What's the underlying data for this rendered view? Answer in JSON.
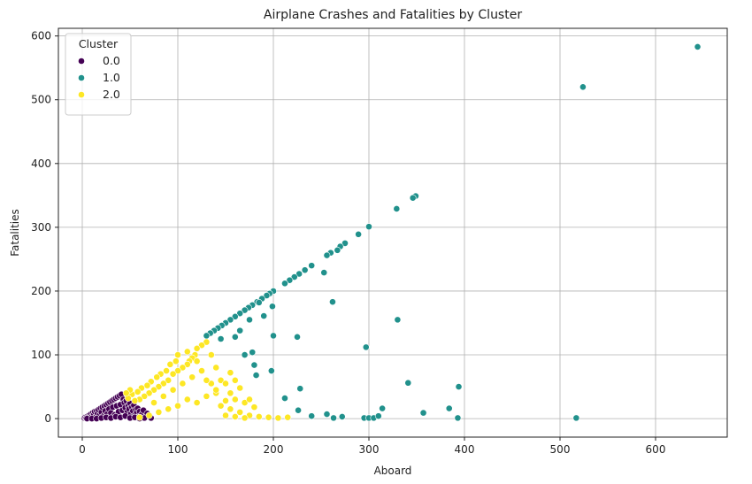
{
  "chart_data": {
    "type": "scatter",
    "title": "Airplane Crashes and Fatalities by Cluster",
    "xlabel": "Aboard",
    "ylabel": "Fatalities",
    "xlim": [
      -25,
      675
    ],
    "ylim": [
      -29,
      612
    ],
    "xticks": [
      0,
      100,
      200,
      300,
      400,
      500,
      600
    ],
    "yticks": [
      0,
      100,
      200,
      300,
      400,
      500,
      600
    ],
    "grid": true,
    "legend": {
      "title": "Cluster",
      "placement": "top-left"
    },
    "series": [
      {
        "name": "0.0",
        "color": "#440154",
        "points": [
          [
            2,
            1
          ],
          [
            3,
            2
          ],
          [
            4,
            1
          ],
          [
            5,
            3
          ],
          [
            6,
            2
          ],
          [
            7,
            5
          ],
          [
            8,
            4
          ],
          [
            9,
            7
          ],
          [
            10,
            3
          ],
          [
            11,
            9
          ],
          [
            12,
            6
          ],
          [
            13,
            11
          ],
          [
            14,
            2
          ],
          [
            15,
            12
          ],
          [
            16,
            8
          ],
          [
            17,
            14
          ],
          [
            18,
            5
          ],
          [
            19,
            16
          ],
          [
            20,
            10
          ],
          [
            21,
            18
          ],
          [
            22,
            4
          ],
          [
            23,
            20
          ],
          [
            24,
            12
          ],
          [
            25,
            22
          ],
          [
            26,
            7
          ],
          [
            27,
            24
          ],
          [
            28,
            15
          ],
          [
            29,
            26
          ],
          [
            30,
            9
          ],
          [
            31,
            28
          ],
          [
            32,
            18
          ],
          [
            33,
            30
          ],
          [
            34,
            6
          ],
          [
            35,
            32
          ],
          [
            36,
            20
          ],
          [
            37,
            34
          ],
          [
            38,
            11
          ],
          [
            39,
            36
          ],
          [
            40,
            22
          ],
          [
            41,
            38
          ],
          [
            42,
            13
          ],
          [
            43,
            30
          ],
          [
            44,
            25
          ],
          [
            45,
            17
          ],
          [
            46,
            28
          ],
          [
            47,
            10
          ],
          [
            48,
            20
          ],
          [
            49,
            15
          ],
          [
            50,
            24
          ],
          [
            51,
            8
          ],
          [
            52,
            18
          ],
          [
            53,
            12
          ],
          [
            54,
            21
          ],
          [
            55,
            5
          ],
          [
            56,
            14
          ],
          [
            57,
            9
          ],
          [
            58,
            16
          ],
          [
            59,
            3
          ],
          [
            60,
            11
          ],
          [
            62,
            6
          ],
          [
            64,
            13
          ],
          [
            66,
            2
          ],
          [
            68,
            8
          ],
          [
            70,
            4
          ],
          [
            72,
            1
          ],
          [
            5,
            0
          ],
          [
            10,
            0
          ],
          [
            15,
            0
          ],
          [
            20,
            1
          ],
          [
            25,
            2
          ],
          [
            30,
            1
          ],
          [
            35,
            3
          ],
          [
            40,
            2
          ],
          [
            45,
            4
          ],
          [
            50,
            1
          ],
          [
            55,
            2
          ],
          [
            60,
            0
          ],
          [
            65,
            1
          ]
        ]
      },
      {
        "name": "1.0",
        "color": "#21918c",
        "points": [
          [
            644,
            583
          ],
          [
            524,
            520
          ],
          [
            349,
            349
          ],
          [
            346,
            346
          ],
          [
            329,
            329
          ],
          [
            300,
            301
          ],
          [
            289,
            289
          ],
          [
            275,
            275
          ],
          [
            270,
            270
          ],
          [
            267,
            264
          ],
          [
            260,
            260
          ],
          [
            256,
            256
          ],
          [
            240,
            240
          ],
          [
            233,
            233
          ],
          [
            227,
            227
          ],
          [
            222,
            222
          ],
          [
            217,
            217
          ],
          [
            212,
            212
          ],
          [
            200,
            200
          ],
          [
            196,
            196
          ],
          [
            193,
            193
          ],
          [
            188,
            188
          ],
          [
            183,
            183
          ],
          [
            178,
            178
          ],
          [
            174,
            174
          ],
          [
            170,
            170
          ],
          [
            165,
            165
          ],
          [
            160,
            160
          ],
          [
            155,
            155
          ],
          [
            150,
            150
          ],
          [
            146,
            146
          ],
          [
            142,
            142
          ],
          [
            138,
            138
          ],
          [
            134,
            134
          ],
          [
            130,
            130
          ],
          [
            185,
            182
          ],
          [
            262,
            183
          ],
          [
            253,
            229
          ],
          [
            330,
            155
          ],
          [
            297,
            112
          ],
          [
            199,
            176
          ],
          [
            190,
            161
          ],
          [
            175,
            155
          ],
          [
            165,
            138
          ],
          [
            160,
            128
          ],
          [
            145,
            125
          ],
          [
            200,
            130
          ],
          [
            225,
            128
          ],
          [
            170,
            100
          ],
          [
            178,
            104
          ],
          [
            198,
            75
          ],
          [
            180,
            84
          ],
          [
            182,
            68
          ],
          [
            394,
            50
          ],
          [
            228,
            47
          ],
          [
            341,
            56
          ],
          [
            212,
            32
          ],
          [
            314,
            16
          ],
          [
            384,
            16
          ],
          [
            226,
            13
          ],
          [
            357,
            9
          ],
          [
            240,
            4
          ],
          [
            256,
            7
          ],
          [
            263,
            1
          ],
          [
            272,
            3
          ],
          [
            295,
            1
          ],
          [
            300,
            1
          ],
          [
            305,
            1
          ],
          [
            310,
            4
          ],
          [
            393,
            1
          ],
          [
            517,
            1
          ]
        ]
      },
      {
        "name": "2.0",
        "color": "#fde725",
        "points": [
          [
            130,
            120
          ],
          [
            125,
            115
          ],
          [
            120,
            110
          ],
          [
            118,
            100
          ],
          [
            115,
            95
          ],
          [
            112,
            90
          ],
          [
            110,
            85
          ],
          [
            105,
            80
          ],
          [
            100,
            75
          ],
          [
            98,
            90
          ],
          [
            95,
            70
          ],
          [
            92,
            85
          ],
          [
            90,
            60
          ],
          [
            88,
            75
          ],
          [
            85,
            55
          ],
          [
            82,
            70
          ],
          [
            80,
            50
          ],
          [
            78,
            65
          ],
          [
            75,
            45
          ],
          [
            72,
            58
          ],
          [
            70,
            40
          ],
          [
            68,
            52
          ],
          [
            65,
            35
          ],
          [
            62,
            48
          ],
          [
            60,
            30
          ],
          [
            58,
            42
          ],
          [
            55,
            28
          ],
          [
            52,
            38
          ],
          [
            50,
            45
          ],
          [
            48,
            32
          ],
          [
            46,
            40
          ],
          [
            135,
            100
          ],
          [
            140,
            80
          ],
          [
            145,
            60
          ],
          [
            150,
            55
          ],
          [
            155,
            72
          ],
          [
            150,
            28
          ],
          [
            140,
            40
          ],
          [
            130,
            35
          ],
          [
            120,
            25
          ],
          [
            110,
            30
          ],
          [
            100,
            20
          ],
          [
            90,
            15
          ],
          [
            80,
            10
          ],
          [
            70,
            5
          ],
          [
            60,
            2
          ],
          [
            75,
            25
          ],
          [
            85,
            35
          ],
          [
            95,
            45
          ],
          [
            105,
            55
          ],
          [
            115,
            65
          ],
          [
            125,
            75
          ],
          [
            135,
            55
          ],
          [
            145,
            20
          ],
          [
            155,
            15
          ],
          [
            165,
            10
          ],
          [
            175,
            5
          ],
          [
            185,
            3
          ],
          [
            195,
            2
          ],
          [
            205,
            1
          ],
          [
            215,
            2
          ],
          [
            160,
            30
          ],
          [
            170,
            25
          ],
          [
            180,
            18
          ],
          [
            155,
            40
          ],
          [
            160,
            60
          ],
          [
            165,
            48
          ],
          [
            175,
            30
          ],
          [
            100,
            100
          ],
          [
            110,
            105
          ],
          [
            120,
            90
          ],
          [
            130,
            60
          ],
          [
            140,
            45
          ],
          [
            150,
            5
          ],
          [
            160,
            3
          ],
          [
            170,
            1
          ]
        ]
      }
    ]
  }
}
